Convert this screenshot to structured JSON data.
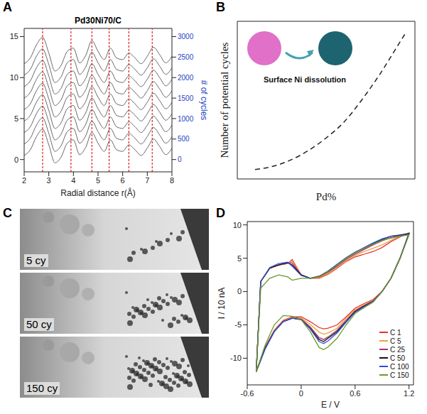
{
  "chart_data": [
    {
      "panel": "A",
      "type": "line",
      "title": "Pd30Ni70/C",
      "x_label": "Radial distance r(Å)",
      "y2_label": "# of cycles",
      "x": [
        2,
        2.25,
        2.5,
        2.75,
        3,
        3.25,
        3.5,
        3.75,
        4,
        4.25,
        4.5,
        4.75,
        5,
        5.25,
        5.5,
        5.75,
        6,
        6.25,
        6.5,
        6.75,
        7,
        7.25,
        7.5,
        7.75,
        8
      ],
      "series": [
        {
          "color": "#555555",
          "values": [
            0.5,
            1.2,
            2.8,
            3.7,
            1.8,
            -0.4,
            0.3,
            2.0,
            2.4,
            0.6,
            1.5,
            3.3,
            2.0,
            1.0,
            2.4,
            1.2,
            1.0,
            1.8,
            1.2,
            0.5,
            1.4,
            2.5,
            1.6,
            0.6,
            1.4
          ]
        },
        {
          "color": "#555555",
          "values": [
            1.9,
            2.6,
            4.2,
            5.1,
            3.2,
            1.0,
            1.7,
            3.4,
            3.8,
            2.0,
            2.9,
            4.7,
            3.4,
            2.4,
            3.8,
            2.6,
            2.4,
            3.2,
            2.6,
            1.9,
            2.8,
            3.9,
            3.0,
            2.0,
            2.8
          ]
        },
        {
          "color": "#555555",
          "values": [
            3.3,
            4.0,
            5.6,
            6.5,
            4.6,
            2.4,
            3.1,
            4.8,
            5.2,
            3.4,
            4.3,
            6.1,
            4.8,
            3.8,
            5.2,
            4.0,
            3.8,
            4.6,
            4.0,
            3.3,
            4.2,
            5.3,
            4.4,
            3.4,
            4.2
          ]
        },
        {
          "color": "#555555",
          "values": [
            4.7,
            5.4,
            7.0,
            7.9,
            6.0,
            3.8,
            4.5,
            6.2,
            6.6,
            4.8,
            5.7,
            7.5,
            6.2,
            5.2,
            6.6,
            5.4,
            5.2,
            6.0,
            5.4,
            4.7,
            5.6,
            6.7,
            5.8,
            4.8,
            5.6
          ]
        },
        {
          "color": "#555555",
          "values": [
            6.1,
            6.8,
            8.4,
            9.3,
            7.4,
            5.2,
            5.9,
            7.6,
            8.0,
            6.2,
            7.1,
            8.9,
            7.6,
            6.6,
            8.0,
            6.8,
            6.6,
            7.4,
            6.8,
            6.1,
            7.0,
            8.1,
            7.2,
            6.2,
            7.0
          ]
        },
        {
          "color": "#555555",
          "values": [
            7.5,
            8.2,
            9.8,
            10.7,
            8.8,
            6.6,
            7.3,
            9.0,
            9.4,
            7.6,
            8.5,
            10.3,
            9.0,
            8.0,
            9.4,
            8.2,
            8.0,
            8.8,
            8.2,
            7.5,
            8.4,
            9.5,
            8.6,
            7.6,
            8.4
          ]
        },
        {
          "color": "#555555",
          "values": [
            8.9,
            9.6,
            11.2,
            12.1,
            10.2,
            8.0,
            8.7,
            10.4,
            10.8,
            9.0,
            9.9,
            11.7,
            10.4,
            9.4,
            10.8,
            9.6,
            9.4,
            10.2,
            9.6,
            8.9,
            9.8,
            10.9,
            10.0,
            9.0,
            9.8
          ]
        },
        {
          "color": "#555555",
          "values": [
            10.3,
            11.0,
            12.6,
            13.5,
            11.6,
            9.4,
            10.1,
            11.8,
            12.2,
            10.4,
            11.3,
            13.1,
            11.8,
            10.8,
            12.2,
            11.0,
            10.8,
            11.6,
            11.0,
            10.3,
            11.2,
            12.3,
            11.4,
            10.4,
            11.2
          ]
        },
        {
          "color": "#555555",
          "values": [
            11.7,
            12.4,
            14.0,
            14.9,
            13.0,
            10.8,
            11.5,
            13.2,
            13.6,
            11.8,
            12.7,
            14.5,
            13.2,
            12.2,
            13.6,
            12.4,
            12.2,
            13.0,
            12.4,
            11.7,
            12.6,
            13.7,
            12.8,
            11.8,
            12.6
          ]
        }
      ],
      "reference_lines": [
        2.75,
        3.9,
        4.75,
        5.45,
        6.25,
        7.2
      ],
      "xlim": [
        2,
        8
      ],
      "xticks": [
        2,
        3,
        4,
        5,
        6,
        7,
        8
      ],
      "ylim": [
        -1.5,
        16
      ],
      "yticks": [
        0,
        5,
        10,
        15
      ],
      "y2lim": [
        -300,
        3200
      ],
      "y2ticks": [
        0,
        500,
        1000,
        1500,
        2000,
        2500,
        3000
      ]
    },
    {
      "panel": "B",
      "type": "line",
      "x_label": "Pd%",
      "y_label": "Number of potential cycles",
      "annotations": [
        "Surface Ni dissolution"
      ],
      "x": [
        10,
        20,
        30,
        40,
        50,
        60,
        70,
        80,
        90,
        95
      ],
      "values": [
        6,
        8,
        12,
        18,
        26,
        36,
        50,
        66,
        84,
        93
      ],
      "color": "#222222",
      "line_style": "dashed",
      "xlim": [
        0,
        100
      ],
      "ylim": [
        0,
        100
      ],
      "tick_labels": false
    },
    {
      "panel": "C",
      "type": "image",
      "labels": [
        "5 cy",
        "50 cy",
        "150 cy"
      ]
    },
    {
      "panel": "D",
      "type": "line",
      "x_label": "E / V",
      "y_label": "I / 10 nA",
      "x": [
        -0.5,
        -0.45,
        -0.35,
        -0.25,
        -0.15,
        -0.1,
        0,
        0.1,
        0.2,
        0.3,
        0.4,
        0.5,
        0.6,
        0.7,
        0.8,
        0.9,
        1,
        1.1,
        1.2,
        1.2,
        1.1,
        1,
        0.9,
        0.8,
        0.7,
        0.6,
        0.5,
        0.4,
        0.3,
        0.25,
        0.2,
        0.1,
        0,
        -0.1,
        -0.2,
        -0.3,
        -0.4,
        -0.5
      ],
      "series": [
        {
          "name": "C 1",
          "color": "#e8322d",
          "values": [
            -12,
            1.5,
            3.5,
            4.0,
            4.2,
            4.8,
            2.5,
            2.0,
            2.0,
            2.6,
            3.5,
            4.5,
            5.2,
            5.6,
            6.0,
            6.6,
            7.5,
            8.2,
            8.8,
            8.8,
            5,
            2,
            0,
            -1.2,
            -1.8,
            -2.5,
            -3.8,
            -5.0,
            -5.5,
            -5.6,
            -5.4,
            -4.5,
            -3.8,
            -3.8,
            -4.3,
            -5.8,
            -8.3,
            -12
          ]
        },
        {
          "name": "C 5",
          "color": "#e8a33c",
          "values": [
            -12,
            1.5,
            3.5,
            4.0,
            4.2,
            4.6,
            2.5,
            2.0,
            2.1,
            2.7,
            3.6,
            4.6,
            5.4,
            6.0,
            6.5,
            7.0,
            7.7,
            8.3,
            8.8,
            8.8,
            5,
            2,
            0,
            -1.3,
            -2.0,
            -2.7,
            -4.0,
            -5.5,
            -6.2,
            -6.4,
            -6.1,
            -4.9,
            -4.0,
            -3.9,
            -4.4,
            -5.9,
            -8.4,
            -12
          ]
        },
        {
          "name": "C 25",
          "color": "#b0306a",
          "values": [
            -12,
            1.5,
            3.5,
            4.0,
            4.3,
            4.3,
            2.5,
            2.0,
            2.2,
            2.9,
            3.8,
            4.8,
            5.6,
            6.3,
            7.0,
            7.6,
            8.1,
            8.4,
            8.7,
            8.7,
            5,
            2,
            0,
            -1.4,
            -2.1,
            -2.9,
            -4.3,
            -5.8,
            -6.8,
            -7.2,
            -6.9,
            -5.3,
            -4.1,
            -4.0,
            -4.5,
            -6.0,
            -8.5,
            -12
          ]
        },
        {
          "name": "C 50",
          "color": "#111111",
          "values": [
            -12,
            1.5,
            3.5,
            4.0,
            4.3,
            4.0,
            2.5,
            2.0,
            2.3,
            3.0,
            4.0,
            5.0,
            5.8,
            6.5,
            7.2,
            7.8,
            8.3,
            8.5,
            8.7,
            8.7,
            5,
            2,
            0,
            -1.5,
            -2.2,
            -3,
            -4.5,
            -6,
            -7,
            -7.5,
            -7.2,
            -5.5,
            -4.2,
            -4,
            -4.5,
            -6,
            -8.5,
            -12
          ]
        },
        {
          "name": "C 100",
          "color": "#2f4fd8",
          "values": [
            -12,
            1.5,
            3.6,
            4.2,
            4.4,
            3.8,
            2.4,
            2.0,
            2.3,
            3.1,
            4.1,
            5.1,
            5.9,
            6.6,
            7.3,
            7.9,
            8.3,
            8.4,
            8.6,
            8.6,
            5,
            2,
            0,
            -1.5,
            -2.3,
            -3.1,
            -4.6,
            -6.2,
            -7.4,
            -7.8,
            -7.5,
            -5.6,
            -4.2,
            -4.0,
            -4.5,
            -6.0,
            -8.6,
            -12
          ]
        },
        {
          "name": "C 150",
          "color": "#6a9a2a",
          "values": [
            -12,
            0.5,
            2.0,
            2.5,
            2.2,
            1.7,
            2.0,
            2.0,
            2.3,
            3.0,
            4.0,
            5.0,
            5.8,
            6.5,
            7.1,
            7.7,
            8.0,
            8.3,
            8.5,
            8.5,
            5,
            2,
            0,
            -1.6,
            -2.4,
            -3.3,
            -5.0,
            -7.0,
            -8.3,
            -8.7,
            -8.4,
            -6.0,
            -4.2,
            -3.7,
            -3.6,
            -5.0,
            -8.0,
            -12
          ]
        }
      ],
      "xlim": [
        -0.6,
        1.25
      ],
      "xticks": [
        -0.6,
        0,
        0.6,
        1.2
      ],
      "ylim": [
        -14,
        10.5
      ],
      "yticks": [
        -10,
        -5,
        0,
        5,
        10
      ],
      "legend": "lower right"
    }
  ]
}
